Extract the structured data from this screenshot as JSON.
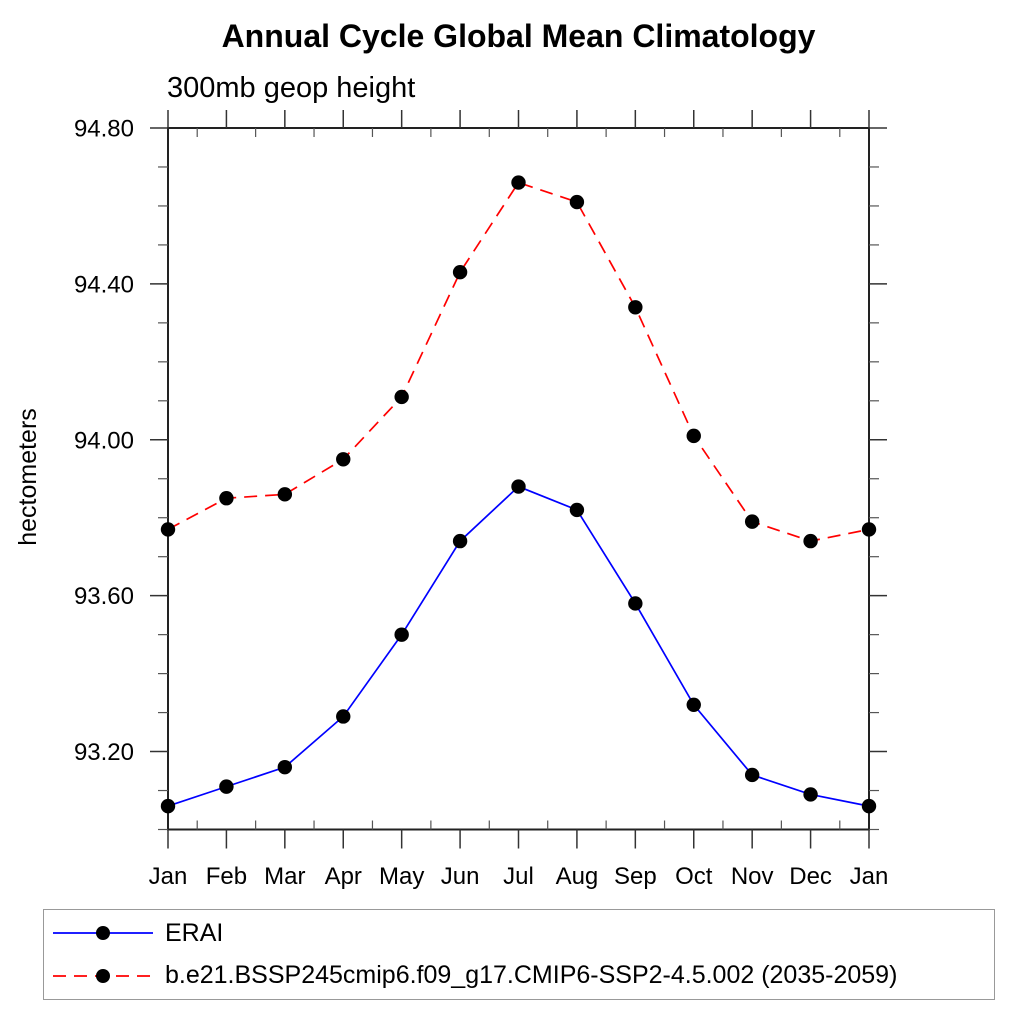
{
  "title": "Annual Cycle Global Mean Climatology",
  "subtitle": "300mb geop height",
  "chart_data": {
    "type": "line",
    "title": "Annual Cycle Global Mean Climatology",
    "subtitle": "300mb geop height",
    "ylabel": "hectometers",
    "xlabel": "",
    "categories": [
      "Jan",
      "Feb",
      "Mar",
      "Apr",
      "May",
      "Jun",
      "Jul",
      "Aug",
      "Sep",
      "Oct",
      "Nov",
      "Dec",
      "Jan"
    ],
    "ylim": [
      93.0,
      94.8
    ],
    "yticks_major": [
      {
        "value": 93.2,
        "label": "93.20"
      },
      {
        "value": 93.6,
        "label": "93.60"
      },
      {
        "value": 94.0,
        "label": "94.00"
      },
      {
        "value": 94.4,
        "label": "94.40"
      },
      {
        "value": 94.8,
        "label": "94.80"
      }
    ],
    "ytick_minor_step": 0.1,
    "grid": false,
    "legend_position": "bottom",
    "marker_color": "#000000",
    "series": [
      {
        "name": "ERAI",
        "color": "#0000ff",
        "style": "solid",
        "marker": "filled-circle",
        "values": [
          93.06,
          93.11,
          93.16,
          93.29,
          93.5,
          93.74,
          93.88,
          93.82,
          93.58,
          93.32,
          93.14,
          93.09,
          93.06
        ]
      },
      {
        "name": "b.e21.BSSP245cmip6.f09_g17.CMIP6-SSP2-4.5.002 (2035-2059)",
        "color": "#ff0000",
        "style": "dashed",
        "marker": "filled-circle",
        "values": [
          93.77,
          93.85,
          93.86,
          93.95,
          94.11,
          94.43,
          94.66,
          94.61,
          94.34,
          94.01,
          93.79,
          93.74,
          93.77
        ]
      }
    ]
  }
}
